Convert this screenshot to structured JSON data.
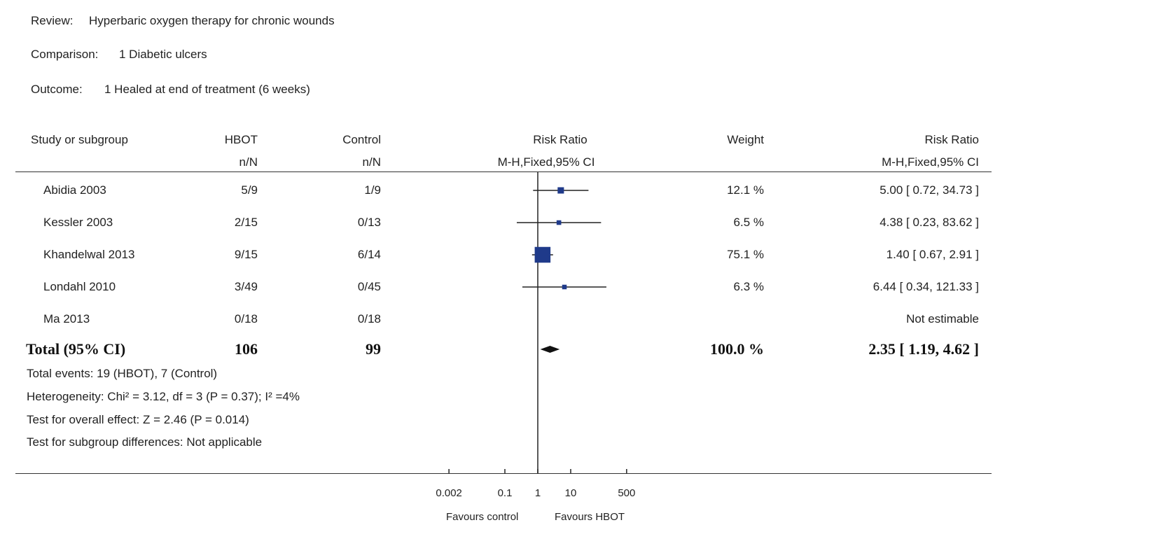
{
  "header": {
    "review_label": "Review:",
    "review": "Hyperbaric oxygen therapy for chronic wounds",
    "comparison_label": "Comparison:",
    "comparison": "1 Diabetic ulcers",
    "outcome_label": "Outcome:",
    "outcome": "1 Healed at end of treatment (6 weeks)"
  },
  "columns": {
    "study": "Study or subgroup",
    "hbot": "HBOT",
    "hbot_sub": "n/N",
    "control": "Control",
    "control_sub": "n/N",
    "rr": "Risk Ratio",
    "rr_sub": "M-H,Fixed,95% CI",
    "weight": "Weight",
    "rr2": "Risk Ratio",
    "rr2_sub": "M-H,Fixed,95% CI"
  },
  "total": {
    "label": "Total (95% CI)",
    "hbot": "106",
    "control": "99",
    "weight": "100.0 %",
    "rr_text": "2.35 [ 1.19, 4.62 ]"
  },
  "footnotes": {
    "events": "Total events: 19 (HBOT), 7 (Control)",
    "heterogeneity": "Heterogeneity: Chi² = 3.12, df = 3 (P = 0.37); I² =4%",
    "overall": "Test for overall effect: Z = 2.46 (P = 0.014)",
    "subgroup": "Test for subgroup differences: Not applicable"
  },
  "axis": {
    "ticks": [
      "0.002",
      "0.1",
      "1",
      "10",
      "500"
    ],
    "favours_left": "Favours control",
    "favours_right": "Favours HBOT"
  },
  "colors": {
    "marker": "#1f3a8a",
    "line": "#222222"
  },
  "chart_data": {
    "type": "scatter",
    "scale": "log",
    "xlim": [
      0.002,
      500
    ],
    "studies": [
      {
        "study": "Abidia 2003",
        "hbot": "5/9",
        "control": "1/9",
        "weight": "12.1 %",
        "rr_text": "5.00 [ 0.72, 34.73 ]",
        "rr": 5.0,
        "lo": 0.72,
        "hi": 34.73,
        "weight_pct": 12.1
      },
      {
        "study": "Kessler 2003",
        "hbot": "2/15",
        "control": "0/13",
        "weight": "6.5 %",
        "rr_text": "4.38 [ 0.23, 83.62 ]",
        "rr": 4.38,
        "lo": 0.23,
        "hi": 83.62,
        "weight_pct": 6.5
      },
      {
        "study": "Khandelwal 2013",
        "hbot": "9/15",
        "control": "6/14",
        "weight": "75.1 %",
        "rr_text": "1.40 [ 0.67, 2.91 ]",
        "rr": 1.4,
        "lo": 0.67,
        "hi": 2.91,
        "weight_pct": 75.1
      },
      {
        "study": "Londahl 2010",
        "hbot": "3/49",
        "control": "0/45",
        "weight": "6.3 %",
        "rr_text": "6.44 [ 0.34, 121.33 ]",
        "rr": 6.44,
        "lo": 0.34,
        "hi": 121.33,
        "weight_pct": 6.3
      },
      {
        "study": "Ma 2013",
        "hbot": "0/18",
        "control": "0/18",
        "weight": "",
        "rr_text": "Not estimable",
        "rr": null,
        "lo": null,
        "hi": null,
        "weight_pct": null
      }
    ],
    "pooled": {
      "rr": 2.35,
      "lo": 1.19,
      "hi": 4.62
    }
  }
}
